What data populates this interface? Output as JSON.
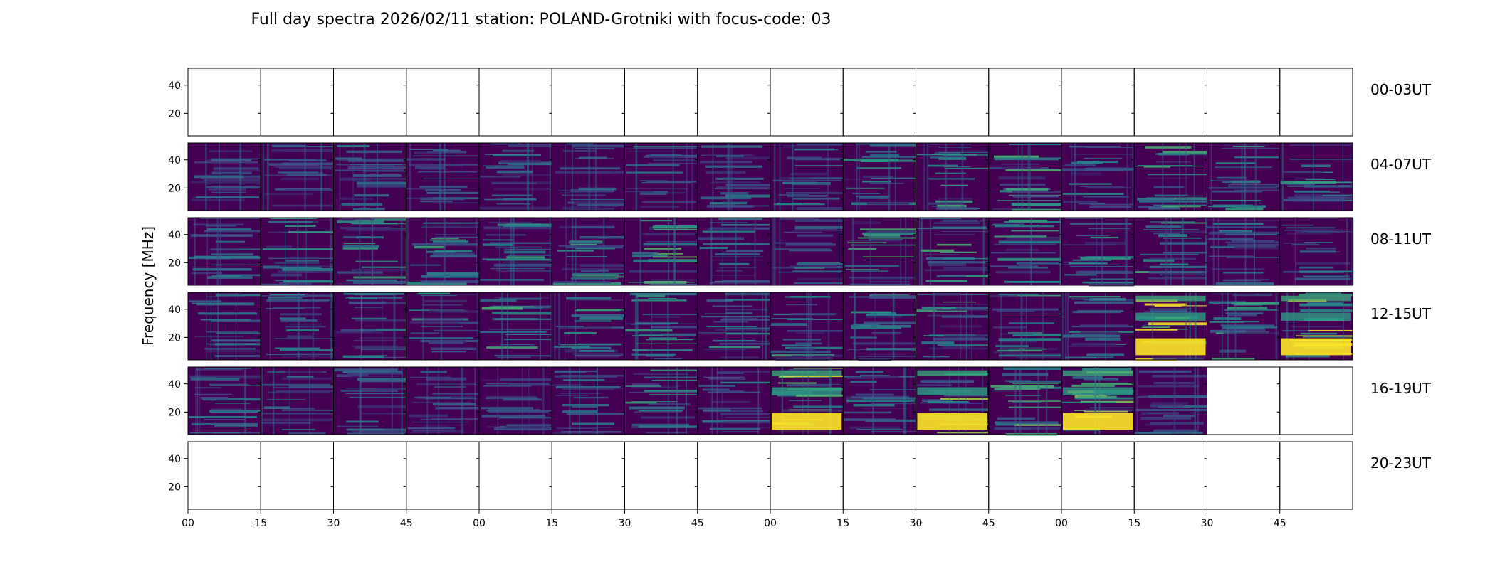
{
  "chart_data": {
    "type": "heatmap",
    "title": "Full day spectra 2026/02/11 station: POLAND-Grotniki with focus-code: 03",
    "ylabel": "Frequency [MHz]",
    "xlabel": "",
    "ylim": [
      4,
      52
    ],
    "y_ticks": [
      "20",
      "40"
    ],
    "x_ticks": [
      "00",
      "15",
      "30",
      "45",
      "00",
      "15",
      "30",
      "45",
      "00",
      "15",
      "30",
      "45",
      "00",
      "15",
      "30",
      "45"
    ],
    "colormap": "viridis",
    "colormap_stops": [
      "#440154",
      "#3b528b",
      "#21918c",
      "#5ec962",
      "#fde725"
    ],
    "panels_per_row": 16,
    "rows": [
      {
        "label": "00-03UT",
        "present": [
          0,
          0,
          0,
          0,
          0,
          0,
          0,
          0,
          0,
          0,
          0,
          0,
          0,
          0,
          0,
          0
        ],
        "intensity": [
          0,
          0,
          0,
          0,
          0,
          0,
          0,
          0,
          0,
          0,
          0,
          0,
          0,
          0,
          0,
          0
        ]
      },
      {
        "label": "04-07UT",
        "present": [
          1,
          1,
          1,
          1,
          1,
          1,
          1,
          1,
          1,
          1,
          1,
          1,
          1,
          1,
          1,
          1
        ],
        "intensity": [
          0.25,
          0.2,
          0.3,
          0.3,
          0.3,
          0.3,
          0.3,
          0.35,
          0.35,
          0.4,
          0.5,
          0.55,
          0.4,
          0.5,
          0.45,
          0.45
        ]
      },
      {
        "label": "08-11UT",
        "present": [
          1,
          1,
          1,
          1,
          1,
          1,
          1,
          1,
          1,
          1,
          1,
          1,
          1,
          1,
          1,
          1
        ],
        "intensity": [
          0.35,
          0.45,
          0.45,
          0.45,
          0.45,
          0.5,
          0.6,
          0.45,
          0.45,
          0.5,
          0.5,
          0.45,
          0.4,
          0.45,
          0.35,
          0.35
        ]
      },
      {
        "label": "12-15UT",
        "present": [
          1,
          1,
          1,
          1,
          1,
          1,
          1,
          1,
          1,
          1,
          1,
          1,
          1,
          1,
          1,
          1
        ],
        "intensity": [
          0.35,
          0.4,
          0.35,
          0.45,
          0.5,
          0.45,
          0.45,
          0.45,
          0.45,
          0.45,
          0.5,
          0.45,
          0.4,
          0.9,
          0.5,
          0.9
        ]
      },
      {
        "label": "16-19UT",
        "present": [
          1,
          1,
          1,
          1,
          1,
          1,
          1,
          1,
          1,
          1,
          1,
          1,
          1,
          1,
          0,
          0
        ],
        "intensity": [
          0.4,
          0.35,
          0.3,
          0.3,
          0.25,
          0.3,
          0.45,
          0.35,
          0.75,
          0.35,
          0.7,
          0.6,
          0.85,
          0.3,
          0,
          0
        ]
      },
      {
        "label": "20-23UT",
        "present": [
          0,
          0,
          0,
          0,
          0,
          0,
          0,
          0,
          0,
          0,
          0,
          0,
          0,
          0,
          0,
          0
        ],
        "intensity": [
          0,
          0,
          0,
          0,
          0,
          0,
          0,
          0,
          0,
          0,
          0,
          0,
          0,
          0,
          0,
          0
        ]
      }
    ]
  }
}
